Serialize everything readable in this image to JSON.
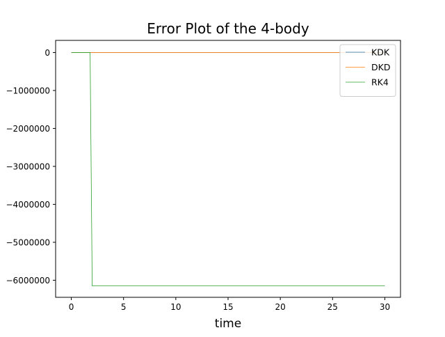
{
  "chart_data": {
    "type": "line",
    "title": "Error Plot of the 4-body",
    "xlabel": "time",
    "ylabel": "",
    "xlim": [
      -1.5,
      31.5
    ],
    "ylim": [
      -6450000,
      320000
    ],
    "xticks": [
      0,
      5,
      10,
      15,
      20,
      25,
      30
    ],
    "xtick_labels": [
      "0",
      "5",
      "10",
      "15",
      "20",
      "25",
      "30"
    ],
    "yticks": [
      0,
      -1000000,
      -2000000,
      -3000000,
      -4000000,
      -5000000,
      -6000000
    ],
    "ytick_labels": [
      "0",
      "−1000000",
      "−2000000",
      "−3000000",
      "−4000000",
      "−5000000",
      "−6000000"
    ],
    "grid": false,
    "legend_position": "top-right",
    "series": [
      {
        "name": "KDK",
        "color": "#1f77b4",
        "x": [
          0,
          30
        ],
        "y": [
          0,
          0
        ]
      },
      {
        "name": "DKD",
        "color": "#ff7f0e",
        "x": [
          0,
          30
        ],
        "y": [
          0,
          0
        ]
      },
      {
        "name": "RK4",
        "color": "#2ca02c",
        "x": [
          0,
          1.8,
          2.0,
          30
        ],
        "y": [
          0,
          0,
          -6150000,
          -6150000
        ]
      }
    ]
  }
}
